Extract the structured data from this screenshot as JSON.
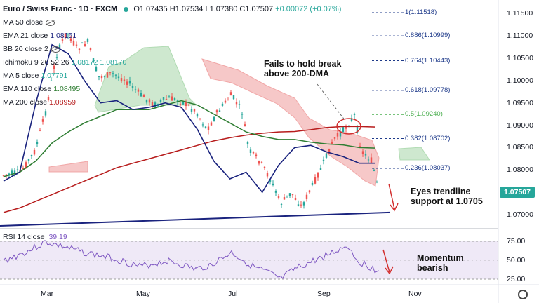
{
  "header": {
    "symbol": "Euro / Swiss Franc · 1D · FXCM",
    "ohlc": "O1.07435 H1.07534 L1.07380 C1.07507",
    "change": "+0.00072 (+0.07%)"
  },
  "legend": [
    {
      "label": "MA 50 close",
      "value": "",
      "color": "#131722",
      "hidden": true
    },
    {
      "label": "EMA 21 close",
      "value": "1.08151",
      "color": "#1a237e",
      "hidden": false
    },
    {
      "label": "BB 20 close 2",
      "value": "",
      "color": "#131722",
      "hidden": true
    },
    {
      "label": "Ichimoku 9 26 52 26",
      "value": "1.08172  1.08170",
      "color": "#26a69a",
      "hidden": false
    },
    {
      "label": "MA 5 close",
      "value": "1.07791",
      "color": "#26a69a",
      "hidden": false
    },
    {
      "label": "EMA 110 close",
      "value": "1.08495",
      "color": "#2e7d32",
      "hidden": false
    },
    {
      "label": "MA 200 close",
      "value": "1.08959",
      "color": "#b71c1c",
      "hidden": false
    }
  ],
  "rsi": {
    "label": "RSI 14 close",
    "value": "39.19",
    "ticks": [
      "75.00",
      "50.00",
      "25.00"
    ]
  },
  "price_axis": [
    "1.11500",
    "1.11000",
    "1.10500",
    "1.10000",
    "1.09500",
    "1.09000",
    "1.08500",
    "1.08000",
    "1.07500",
    "1.07000"
  ],
  "time_axis": [
    "Mar",
    "May",
    "Jul",
    "Sep",
    "Nov"
  ],
  "last_price": "1.07507",
  "annotations": {
    "hold_break": [
      "Fails to hold break",
      "above 200-DMA"
    ],
    "trendline": [
      "Eyes trendline",
      "support at 1.0705"
    ],
    "momentum": [
      "Momentum",
      "bearish"
    ]
  },
  "fib_levels": [
    {
      "label": "1(1.11518)",
      "price": 1.11518,
      "color": "#1e3a8a"
    },
    {
      "label": "0.886(1.10999)",
      "price": 1.10999,
      "color": "#1e3a8a"
    },
    {
      "label": "0.764(1.10443)",
      "price": 1.10443,
      "color": "#1e3a8a"
    },
    {
      "label": "0.618(1.09778)",
      "price": 1.09778,
      "color": "#1e3a8a"
    },
    {
      "label": "0.5(1.09240)",
      "price": 1.0924,
      "color": "#4caf50"
    },
    {
      "label": "0.382(1.08702)",
      "price": 1.08702,
      "color": "#1e3a8a"
    },
    {
      "label": "0.236(1.08037)",
      "price": 1.08037,
      "color": "#1e3a8a"
    }
  ],
  "colors": {
    "up": "#26a69a",
    "down": "#ef5350",
    "rsi": "#7e57c2",
    "trend": "#1a237e"
  },
  "chart_data": {
    "type": "line",
    "title": "Euro / Swiss Franc · 1D · FXCM",
    "ylim": [
      1.0675,
      1.118
    ],
    "x_range": [
      "Jan",
      "Nov"
    ],
    "series": [
      {
        "name": "MA 200 close",
        "values": [
          1.0705,
          1.0715,
          1.073,
          1.0745,
          1.076,
          1.0775,
          1.079,
          1.0805,
          1.0815,
          1.0825,
          1.0835,
          1.0845,
          1.0855,
          1.0865,
          1.0872,
          1.0878,
          1.0882,
          1.0885,
          1.0886,
          1.089,
          1.0895,
          1.0897,
          1.0897,
          1.0896
        ]
      },
      {
        "name": "EMA 110 close",
        "values": [
          1.0785,
          1.0795,
          1.082,
          1.086,
          1.0885,
          1.0905,
          1.092,
          1.0935,
          1.0935,
          1.0935,
          1.0945,
          1.0955,
          1.0945,
          1.0925,
          1.0905,
          1.0885,
          1.0875,
          1.0868,
          1.0868,
          1.0862,
          1.0858,
          1.0856,
          1.085,
          1.0849
        ]
      },
      {
        "name": "EMA 21 close",
        "values": [
          1.0775,
          1.0795,
          1.095,
          1.108,
          1.106,
          1.1,
          1.095,
          1.0955,
          1.0935,
          1.094,
          1.095,
          1.094,
          1.089,
          1.082,
          1.078,
          1.0795,
          1.075,
          1.081,
          1.085,
          1.0855,
          1.084,
          1.083,
          1.0815,
          1.0815
        ]
      }
    ],
    "trendline": {
      "from": 1.0675,
      "to": 1.0705
    },
    "rsi_ylim": [
      25,
      75
    ],
    "rsi_last": 39.19
  }
}
